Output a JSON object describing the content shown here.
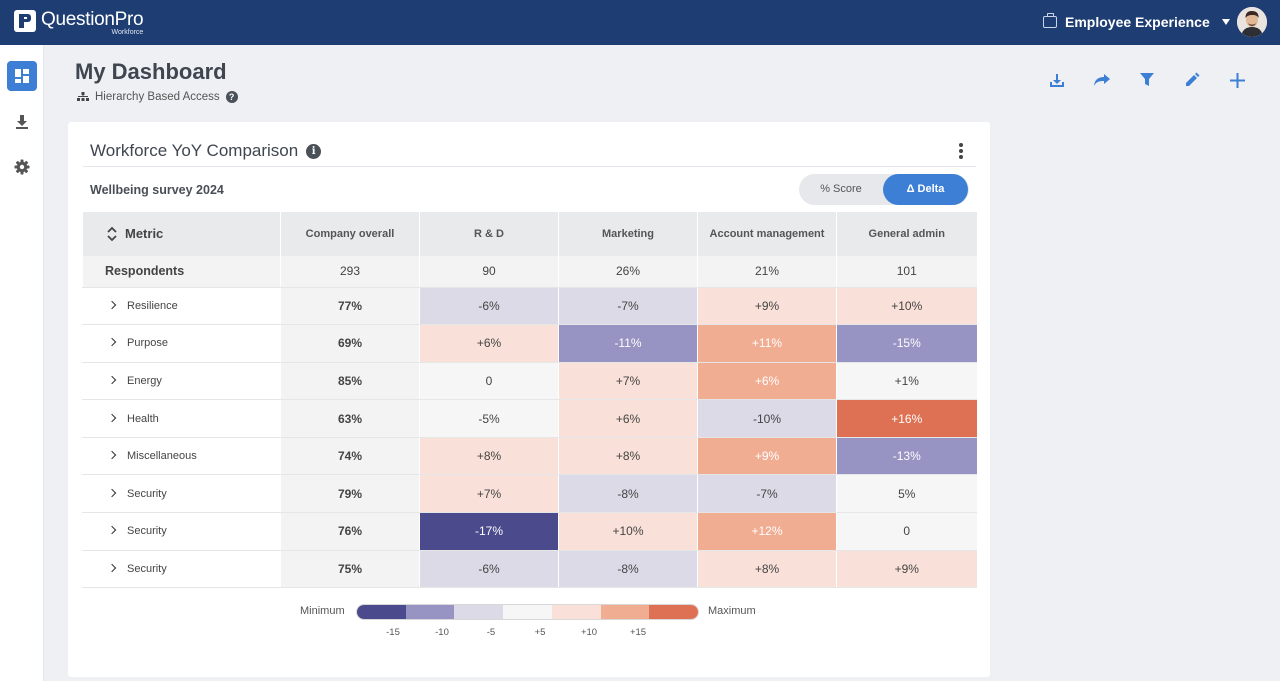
{
  "brand": {
    "name": "QuestionPro",
    "sub": "Workforce"
  },
  "topbar": {
    "product": "Employee Experience"
  },
  "sidebar": {
    "items": [
      "dashboard",
      "download",
      "settings"
    ]
  },
  "header": {
    "title": "My Dashboard",
    "access": "Hierarchy Based Access"
  },
  "card": {
    "title": "Workforce YoY Comparison",
    "survey": "Wellbeing survey 2024",
    "toggle": {
      "score": "% Score",
      "delta": "Δ Delta",
      "active": "delta"
    }
  },
  "table": {
    "metric_header": "Metric",
    "columns": [
      "Company overall",
      "R & D",
      "Marketing",
      "Account management",
      "General admin"
    ],
    "respondents": {
      "label": "Respondents",
      "values": [
        "293",
        "90",
        "26%",
        "21%",
        "101"
      ]
    },
    "rows": [
      {
        "label": "Resilience",
        "overall": "77%",
        "cells": [
          {
            "v": "-6%",
            "bg": "#dcdae7",
            "fg": "#444"
          },
          {
            "v": "-7%",
            "bg": "#dcdae7",
            "fg": "#444"
          },
          {
            "v": "+9%",
            "bg": "#f9e0d8",
            "fg": "#444"
          },
          {
            "v": "+10%",
            "bg": "#f9e0d8",
            "fg": "#444"
          }
        ]
      },
      {
        "label": "Purpose",
        "overall": "69%",
        "cells": [
          {
            "v": "+6%",
            "bg": "#f9e0d8",
            "fg": "#444"
          },
          {
            "v": "-11%",
            "bg": "#9793c2",
            "fg": "#fff"
          },
          {
            "v": "+11%",
            "bg": "#f1ad92",
            "fg": "#fff"
          },
          {
            "v": "-15%",
            "bg": "#9793c2",
            "fg": "#fff"
          }
        ]
      },
      {
        "label": "Energy",
        "overall": "85%",
        "cells": [
          {
            "v": "0",
            "bg": "#f6f6f6",
            "fg": "#444"
          },
          {
            "v": "+7%",
            "bg": "#f9e0d8",
            "fg": "#444"
          },
          {
            "v": "+6%",
            "bg": "#f1ad92",
            "fg": "#fff"
          },
          {
            "v": "+1%",
            "bg": "#f6f6f6",
            "fg": "#444"
          }
        ]
      },
      {
        "label": "Health",
        "overall": "63%",
        "cells": [
          {
            "v": "-5%",
            "bg": "#f6f6f6",
            "fg": "#444"
          },
          {
            "v": "+6%",
            "bg": "#f9e0d8",
            "fg": "#444"
          },
          {
            "v": "-10%",
            "bg": "#dcdae7",
            "fg": "#444"
          },
          {
            "v": "+16%",
            "bg": "#de7053",
            "fg": "#fff"
          }
        ]
      },
      {
        "label": "Miscellaneous",
        "overall": "74%",
        "cells": [
          {
            "v": "+8%",
            "bg": "#f9e0d8",
            "fg": "#444"
          },
          {
            "v": "+8%",
            "bg": "#f9e0d8",
            "fg": "#444"
          },
          {
            "v": "+9%",
            "bg": "#f1ad92",
            "fg": "#fff"
          },
          {
            "v": "-13%",
            "bg": "#9793c2",
            "fg": "#fff"
          }
        ]
      },
      {
        "label": "Security",
        "overall": "79%",
        "cells": [
          {
            "v": "+7%",
            "bg": "#f9e0d8",
            "fg": "#444"
          },
          {
            "v": "-8%",
            "bg": "#dcdae7",
            "fg": "#444"
          },
          {
            "v": "-7%",
            "bg": "#dcdae7",
            "fg": "#444"
          },
          {
            "v": "5%",
            "bg": "#f6f6f6",
            "fg": "#444"
          }
        ]
      },
      {
        "label": "Security",
        "overall": "76%",
        "cells": [
          {
            "v": "-17%",
            "bg": "#4a4a8c",
            "fg": "#fff"
          },
          {
            "v": "+10%",
            "bg": "#f9e0d8",
            "fg": "#444"
          },
          {
            "v": "+12%",
            "bg": "#f1ad92",
            "fg": "#fff"
          },
          {
            "v": "0",
            "bg": "#f6f6f6",
            "fg": "#444"
          }
        ]
      },
      {
        "label": "Security",
        "overall": "75%",
        "cells": [
          {
            "v": "-6%",
            "bg": "#dcdae7",
            "fg": "#444"
          },
          {
            "v": "-8%",
            "bg": "#dcdae7",
            "fg": "#444"
          },
          {
            "v": "+8%",
            "bg": "#f9e0d8",
            "fg": "#444"
          },
          {
            "v": "+9%",
            "bg": "#f9e0d8",
            "fg": "#444"
          }
        ]
      }
    ]
  },
  "legend": {
    "min_label": "Minimum",
    "max_label": "Maximum",
    "colors": [
      "#4a4a8c",
      "#9793c2",
      "#dcdae7",
      "#f6f6f6",
      "#f9e0d8",
      "#f1ad92",
      "#de7053"
    ],
    "ticks": [
      "-15",
      "-10",
      "-5",
      "+5",
      "+10",
      "+15"
    ]
  },
  "colors": {
    "topbar": "#1e3d73",
    "accent": "#3c7fd4"
  }
}
